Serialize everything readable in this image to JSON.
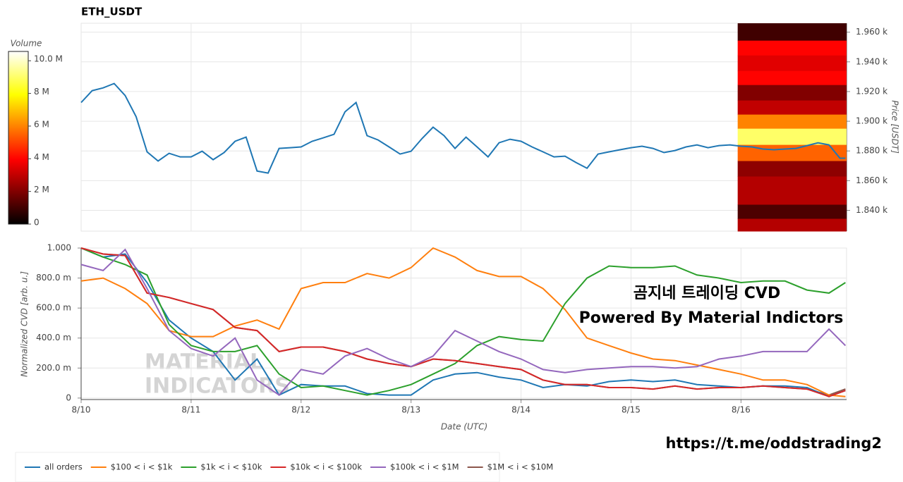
{
  "chart_data": [
    {
      "type": "line",
      "title": "ETH_USDT",
      "ylabel": "Price [USDT]",
      "color": "#1f77b4",
      "grid": true,
      "xlim": [
        0,
        6.96
      ],
      "ylim": [
        1826,
        1966
      ],
      "yticks": [
        {
          "value": 1840,
          "label": "1.840 k"
        },
        {
          "value": 1860,
          "label": "1.860 k"
        },
        {
          "value": 1880,
          "label": "1.880 k"
        },
        {
          "value": 1900,
          "label": "1.900 k"
        },
        {
          "value": 1920,
          "label": "1.920 k"
        },
        {
          "value": 1940,
          "label": "1.940 k"
        },
        {
          "value": 1960,
          "label": "1.960 k"
        }
      ],
      "x": [
        0,
        0.1,
        0.2,
        0.3,
        0.4,
        0.5,
        0.6,
        0.7,
        0.8,
        0.9,
        1.0,
        1.1,
        1.2,
        1.3,
        1.4,
        1.5,
        1.6,
        1.7,
        1.8,
        1.9,
        2.0,
        2.1,
        2.2,
        2.3,
        2.4,
        2.5,
        2.6,
        2.7,
        2.8,
        2.9,
        3.0,
        3.1,
        3.2,
        3.3,
        3.4,
        3.5,
        3.6,
        3.7,
        3.8,
        3.9,
        4.0,
        4.1,
        4.2,
        4.3,
        4.4,
        4.5,
        4.6,
        4.7,
        4.8,
        4.9,
        5.0,
        5.1,
        5.2,
        5.3,
        5.4,
        5.5,
        5.6,
        5.7,
        5.8,
        5.9,
        6.0,
        6.1,
        6.2,
        6.3,
        6.4,
        6.5,
        6.6,
        6.7,
        6.8,
        6.9,
        6.95
      ],
      "values": [
        1912.6,
        1920.6,
        1922.5,
        1925.4,
        1917.3,
        1903.1,
        1879.4,
        1873.2,
        1878.4,
        1876.0,
        1876.0,
        1879.8,
        1874.1,
        1878.9,
        1886.5,
        1889.3,
        1866.5,
        1865.1,
        1881.7,
        1882.2,
        1882.7,
        1886.5,
        1888.8,
        1891.2,
        1906.4,
        1912.6,
        1890.3,
        1887.4,
        1882.7,
        1877.9,
        1879.8,
        1888.4,
        1896.0,
        1890.3,
        1881.7,
        1889.3,
        1882.7,
        1876.0,
        1885.5,
        1887.9,
        1886.5,
        1882.7,
        1879.4,
        1876.0,
        1876.5,
        1872.2,
        1868.4,
        1877.9,
        1879.4,
        1880.8,
        1882.2,
        1883.2,
        1881.7,
        1878.9,
        1880.3,
        1882.7,
        1884.1,
        1882.2,
        1883.6,
        1884.1,
        1883.2,
        1882.7,
        1881.3,
        1880.8,
        1881.3,
        1881.7,
        1883.6,
        1885.5,
        1884.1,
        1875.1,
        1875.1
      ],
      "heatmap": {
        "x_start": 5.97,
        "colormap": "hot",
        "clim": [
          0,
          10570000
        ],
        "colorbar_label": "Volume",
        "colorbar_ticks": [
          0,
          {
            "value": 2000000,
            "label": "2 M"
          },
          {
            "value": 4000000,
            "label": "4 M"
          },
          {
            "value": 6000000,
            "label": "6 M"
          },
          {
            "value": 8000000,
            "label": "8 M"
          },
          {
            "value": 10000000,
            "label": "10.0 M"
          }
        ],
        "price_bins": [
          1966,
          1954.3,
          1944.3,
          1933.9,
          1924.4,
          1914,
          1904.5,
          1895,
          1884.1,
          1873.2,
          1862.8,
          1843.8,
          1834.3,
          1826
        ],
        "volumes": [
          1000000,
          4000000,
          3500000,
          4000000,
          2000000,
          3000000,
          6000000,
          9000000,
          5500000,
          2200000,
          2800000,
          1200000,
          2800000
        ]
      }
    },
    {
      "type": "line",
      "xlabel": "Date (UTC)",
      "ylabel": "Normalized CVD [arb. u.]",
      "grid": true,
      "xlim": [
        0,
        6.96
      ],
      "ylim": [
        -0.01,
        1
      ],
      "xticks": [
        {
          "value": 0,
          "label": "8/10"
        },
        {
          "value": 1,
          "label": "8/11"
        },
        {
          "value": 2,
          "label": "8/12"
        },
        {
          "value": 3,
          "label": "8/13"
        },
        {
          "value": 4,
          "label": "8/14"
        },
        {
          "value": 5,
          "label": "8/15"
        },
        {
          "value": 6,
          "label": "8/16"
        }
      ],
      "yticks": [
        0,
        {
          "value": 0.2,
          "label": "200.0 m"
        },
        {
          "value": 0.4,
          "label": "400.0 m"
        },
        {
          "value": 0.6,
          "label": "600.0 m"
        },
        {
          "value": 0.8,
          "label": "800.0 m"
        },
        {
          "value": 1,
          "label": "1.000"
        }
      ],
      "annotations": [
        "곰지네 트레이딩 CVD",
        "Powered By Material Indictors"
      ],
      "watermark": [
        "MATERIAL",
        "INDICATORS"
      ],
      "x": [
        0,
        0.2,
        0.4,
        0.6,
        0.8,
        1.0,
        1.2,
        1.4,
        1.6,
        1.8,
        2.0,
        2.2,
        2.4,
        2.6,
        2.8,
        3.0,
        3.2,
        3.4,
        3.6,
        3.8,
        4.0,
        4.2,
        4.4,
        4.6,
        4.8,
        5.0,
        5.2,
        5.4,
        5.6,
        5.8,
        6.0,
        6.2,
        6.4,
        6.6,
        6.8,
        6.95
      ],
      "series": [
        {
          "name": "$1M < i < $10M",
          "color": "#8c564b",
          "values": [
            1.0,
            0.96,
            0.95,
            0.7,
            0.67,
            0.63,
            0.59,
            0.47,
            0.45,
            0.31,
            0.34,
            0.34,
            0.31,
            0.26,
            0.23,
            0.21,
            0.26,
            0.25,
            0.23,
            0.21,
            0.19,
            0.12,
            0.09,
            0.09,
            0.07,
            0.07,
            0.06,
            0.08,
            0.06,
            0.07,
            0.07,
            0.08,
            0.07,
            0.06,
            0.02,
            0.06
          ]
        },
        {
          "name": "all orders",
          "color": "#1f77b4",
          "values": [
            1.0,
            0.94,
            0.96,
            0.77,
            0.52,
            0.4,
            0.31,
            0.12,
            0.26,
            0.02,
            0.09,
            0.08,
            0.08,
            0.03,
            0.02,
            0.02,
            0.12,
            0.16,
            0.17,
            0.14,
            0.12,
            0.07,
            0.09,
            0.08,
            0.11,
            0.12,
            0.11,
            0.12,
            0.09,
            0.08,
            0.07,
            0.08,
            0.08,
            0.07,
            0.01,
            0.05
          ]
        },
        {
          "name": "$100 < i < $1k",
          "color": "#ff7f0e",
          "values": [
            0.78,
            0.8,
            0.73,
            0.63,
            0.45,
            0.41,
            0.41,
            0.48,
            0.52,
            0.46,
            0.73,
            0.77,
            0.77,
            0.83,
            0.8,
            0.87,
            1.0,
            0.94,
            0.85,
            0.81,
            0.81,
            0.73,
            0.59,
            0.4,
            0.35,
            0.3,
            0.26,
            0.25,
            0.22,
            0.19,
            0.16,
            0.12,
            0.12,
            0.09,
            0.02,
            0.01
          ]
        },
        {
          "name": "$1k < i < $10k",
          "color": "#2ca02c",
          "values": [
            1.0,
            0.94,
            0.89,
            0.82,
            0.49,
            0.35,
            0.31,
            0.31,
            0.35,
            0.16,
            0.07,
            0.08,
            0.05,
            0.02,
            0.05,
            0.09,
            0.16,
            0.23,
            0.35,
            0.41,
            0.39,
            0.38,
            0.63,
            0.8,
            0.88,
            0.87,
            0.87,
            0.88,
            0.82,
            0.8,
            0.77,
            0.78,
            0.78,
            0.72,
            0.7,
            0.77
          ]
        },
        {
          "name": "$10k < i < $100k",
          "color": "#d62728",
          "values": [
            1.0,
            0.96,
            0.95,
            0.7,
            0.67,
            0.63,
            0.59,
            0.47,
            0.45,
            0.31,
            0.34,
            0.34,
            0.31,
            0.26,
            0.23,
            0.21,
            0.26,
            0.25,
            0.23,
            0.21,
            0.19,
            0.12,
            0.09,
            0.09,
            0.07,
            0.07,
            0.06,
            0.08,
            0.06,
            0.07,
            0.07,
            0.08,
            0.07,
            0.06,
            0.01,
            0.05
          ]
        },
        {
          "name": "$100k < i < $1M",
          "color": "#9467bd",
          "values": [
            0.89,
            0.85,
            0.99,
            0.73,
            0.45,
            0.33,
            0.28,
            0.4,
            0.12,
            0.02,
            0.19,
            0.16,
            0.28,
            0.33,
            0.26,
            0.21,
            0.28,
            0.45,
            0.38,
            0.31,
            0.26,
            0.19,
            0.17,
            0.19,
            0.2,
            0.21,
            0.21,
            0.2,
            0.21,
            0.26,
            0.28,
            0.31,
            0.31,
            0.31,
            0.46,
            0.35
          ]
        }
      ],
      "legend_order": [
        1,
        2,
        3,
        4,
        5,
        0
      ]
    }
  ],
  "footer_link": "https://t.me/oddstrading2"
}
